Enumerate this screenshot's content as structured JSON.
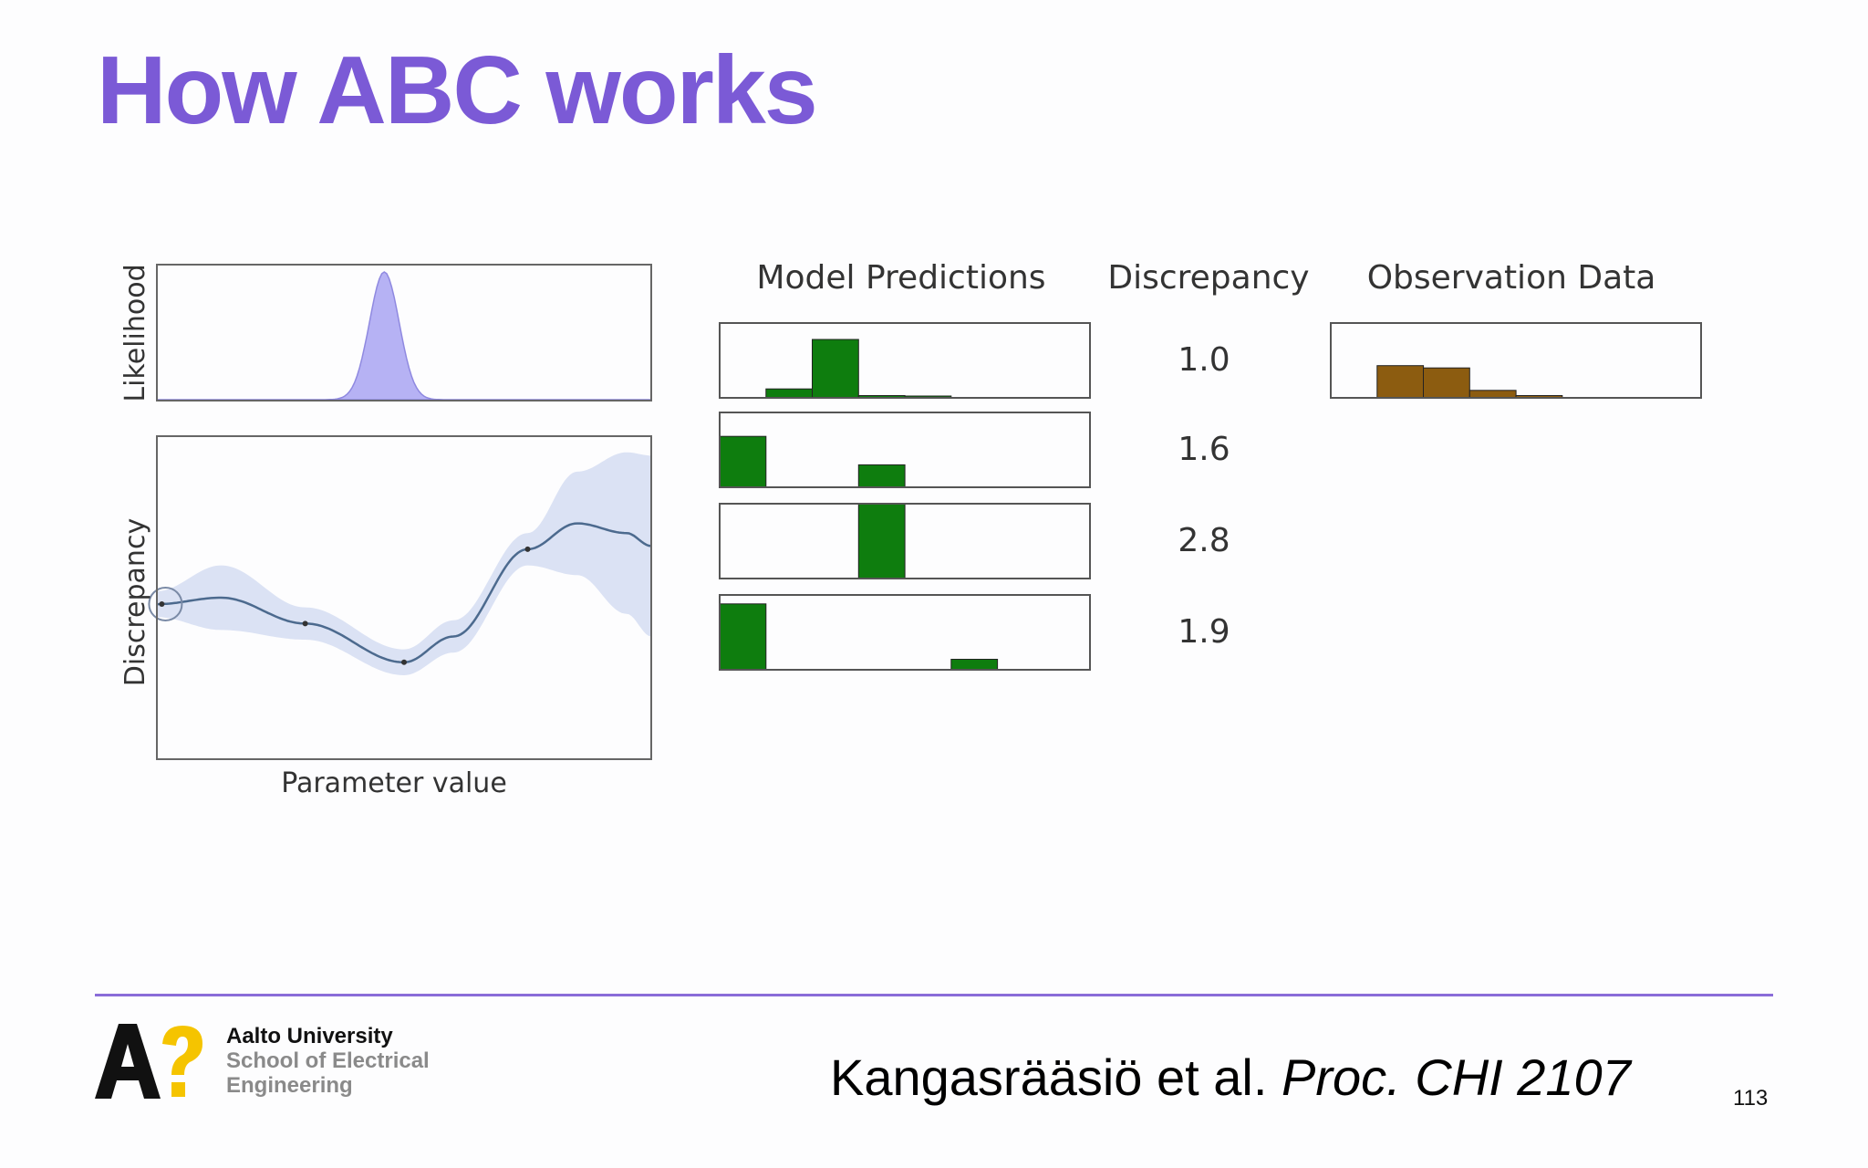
{
  "title": "How ABC works",
  "chart_data": [
    {
      "type": "area",
      "ylabel": "Likelihood",
      "x_range": [
        0,
        1
      ],
      "peak_center": 0.46,
      "peak_width": 0.03,
      "fill_color": "#b6b2f4"
    },
    {
      "type": "line",
      "ylabel": "Discrepancy",
      "xlabel": "Parameter value",
      "mean": [
        [
          0,
          0.48
        ],
        [
          0.13,
          0.5
        ],
        [
          0.3,
          0.42
        ],
        [
          0.5,
          0.3
        ],
        [
          0.6,
          0.38
        ],
        [
          0.75,
          0.65
        ],
        [
          0.85,
          0.73
        ],
        [
          0.95,
          0.7
        ],
        [
          1.0,
          0.66
        ]
      ],
      "band_halfwidth": [
        [
          0,
          0.04
        ],
        [
          0.13,
          0.1
        ],
        [
          0.3,
          0.05
        ],
        [
          0.5,
          0.04
        ],
        [
          0.6,
          0.05
        ],
        [
          0.75,
          0.05
        ],
        [
          0.85,
          0.16
        ],
        [
          0.95,
          0.25
        ],
        [
          1.0,
          0.28
        ]
      ],
      "samples_x": [
        0.01,
        0.3,
        0.5,
        0.75
      ],
      "line_color": "#4c6a8e",
      "band_color": "#dbe2f4"
    },
    {
      "type": "bar",
      "headers": {
        "predictions": "Model Predictions",
        "discrepancy": "Discrepancy",
        "observation": "Observation Data"
      },
      "bins": 8,
      "prediction_color": "#0e7d0e",
      "observation_color": "#8c5c10",
      "rows": [
        {
          "values": [
            0,
            0.12,
            0.78,
            0.03,
            0.02,
            0,
            0,
            0
          ],
          "discrepancy": "1.0"
        },
        {
          "values": [
            0.68,
            0,
            0,
            0.3,
            0,
            0,
            0,
            0
          ],
          "discrepancy": "1.6"
        },
        {
          "values": [
            0,
            0,
            0,
            1.0,
            0,
            0,
            0,
            0
          ],
          "discrepancy": "2.8"
        },
        {
          "values": [
            0.88,
            0,
            0,
            0,
            0,
            0.14,
            0,
            0
          ],
          "discrepancy": "1.9"
        }
      ],
      "observation": [
        0,
        0.43,
        0.4,
        0.1,
        0.03,
        0,
        0,
        0
      ]
    }
  ],
  "footer": {
    "university": "Aalto University",
    "school_line1": "School of Electrical",
    "school_line2": "Engineering",
    "citation_normal": "Kangasrääsiö et al. ",
    "citation_italic": "Proc. CHI 2107",
    "page_number": "113"
  },
  "colors": {
    "title": "#7b5ad6",
    "rule": "#8a6cd8",
    "logo_yellow": "#f5c400"
  }
}
